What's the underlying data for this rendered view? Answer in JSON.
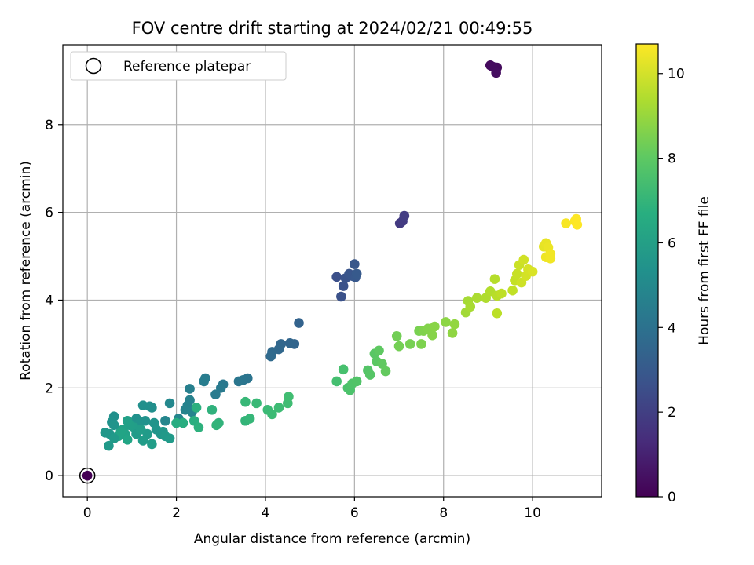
{
  "chart_data": {
    "type": "scatter",
    "title": "FOV centre drift starting at 2024/02/21 00:49:55",
    "xlabel": "Angular distance from reference (arcmin)",
    "ylabel": "Rotation from reference (arcmin)",
    "xlim": [
      -0.55,
      11.55
    ],
    "ylim": [
      -0.48,
      9.82
    ],
    "xticks": [
      0,
      2,
      4,
      6,
      8,
      10
    ],
    "yticks": [
      0,
      2,
      4,
      6,
      8
    ],
    "grid": true,
    "legend": {
      "placement": "upper-left",
      "entries": [
        "Reference platepar"
      ]
    },
    "reference_point": {
      "x": 0,
      "y": 0
    },
    "colorbar": {
      "label": "Hours from first FF file",
      "range": [
        0,
        10.7
      ],
      "ticks": [
        0,
        2,
        4,
        6,
        8,
        10
      ],
      "colormap": "viridis"
    },
    "points": [
      {
        "x": 0.0,
        "y": 0.0,
        "c": 0.0
      },
      {
        "x": 9.05,
        "y": 9.35,
        "c": 0.3
      },
      {
        "x": 9.2,
        "y": 9.3,
        "c": 0.3
      },
      {
        "x": 9.1,
        "y": 9.32,
        "c": 0.35
      },
      {
        "x": 9.18,
        "y": 9.18,
        "c": 0.4
      },
      {
        "x": 7.02,
        "y": 5.75,
        "c": 1.8
      },
      {
        "x": 7.08,
        "y": 5.8,
        "c": 1.85
      },
      {
        "x": 7.12,
        "y": 5.92,
        "c": 1.9
      },
      {
        "x": 5.6,
        "y": 4.53,
        "c": 2.6
      },
      {
        "x": 5.7,
        "y": 4.08,
        "c": 2.7
      },
      {
        "x": 5.75,
        "y": 4.32,
        "c": 2.7
      },
      {
        "x": 5.8,
        "y": 4.5,
        "c": 2.75
      },
      {
        "x": 5.88,
        "y": 4.6,
        "c": 2.8
      },
      {
        "x": 5.95,
        "y": 4.55,
        "c": 2.85
      },
      {
        "x": 6.0,
        "y": 4.82,
        "c": 2.9
      },
      {
        "x": 6.02,
        "y": 4.52,
        "c": 2.95
      },
      {
        "x": 6.05,
        "y": 4.6,
        "c": 3.0
      },
      {
        "x": 4.75,
        "y": 3.48,
        "c": 3.4
      },
      {
        "x": 4.65,
        "y": 3.0,
        "c": 3.45
      },
      {
        "x": 4.55,
        "y": 3.02,
        "c": 3.5
      },
      {
        "x": 4.35,
        "y": 3.0,
        "c": 3.55
      },
      {
        "x": 4.3,
        "y": 2.88,
        "c": 3.6
      },
      {
        "x": 4.15,
        "y": 2.82,
        "c": 3.65
      },
      {
        "x": 4.12,
        "y": 2.72,
        "c": 3.7
      },
      {
        "x": 3.6,
        "y": 2.22,
        "c": 4.1
      },
      {
        "x": 3.5,
        "y": 2.18,
        "c": 4.15
      },
      {
        "x": 3.4,
        "y": 2.15,
        "c": 4.2
      },
      {
        "x": 3.05,
        "y": 2.08,
        "c": 4.3
      },
      {
        "x": 3.0,
        "y": 2.0,
        "c": 4.35
      },
      {
        "x": 2.88,
        "y": 1.85,
        "c": 4.4
      },
      {
        "x": 2.65,
        "y": 2.22,
        "c": 4.45
      },
      {
        "x": 2.62,
        "y": 2.15,
        "c": 4.5
      },
      {
        "x": 2.3,
        "y": 1.98,
        "c": 4.6
      },
      {
        "x": 2.3,
        "y": 1.72,
        "c": 4.65
      },
      {
        "x": 2.25,
        "y": 1.6,
        "c": 4.7
      },
      {
        "x": 2.2,
        "y": 1.5,
        "c": 4.75
      },
      {
        "x": 2.35,
        "y": 1.45,
        "c": 4.8
      },
      {
        "x": 2.05,
        "y": 1.3,
        "c": 4.85
      },
      {
        "x": 1.75,
        "y": 1.25,
        "c": 4.9
      },
      {
        "x": 1.85,
        "y": 1.65,
        "c": 4.95
      },
      {
        "x": 1.4,
        "y": 1.58,
        "c": 5.2
      },
      {
        "x": 1.45,
        "y": 1.55,
        "c": 5.25
      },
      {
        "x": 1.25,
        "y": 1.6,
        "c": 5.3
      },
      {
        "x": 1.1,
        "y": 1.3,
        "c": 5.35
      },
      {
        "x": 1.3,
        "y": 1.25,
        "c": 5.4
      },
      {
        "x": 1.15,
        "y": 1.18,
        "c": 5.45
      },
      {
        "x": 1.5,
        "y": 1.2,
        "c": 5.5
      },
      {
        "x": 1.55,
        "y": 1.05,
        "c": 5.55
      },
      {
        "x": 1.65,
        "y": 0.95,
        "c": 5.6
      },
      {
        "x": 1.7,
        "y": 1.0,
        "c": 5.65
      },
      {
        "x": 1.75,
        "y": 0.9,
        "c": 5.7
      },
      {
        "x": 1.85,
        "y": 0.85,
        "c": 5.75
      },
      {
        "x": 1.35,
        "y": 0.95,
        "c": 5.8
      },
      {
        "x": 1.25,
        "y": 0.8,
        "c": 5.85
      },
      {
        "x": 1.45,
        "y": 0.72,
        "c": 5.9
      },
      {
        "x": 1.05,
        "y": 1.1,
        "c": 5.95
      },
      {
        "x": 0.95,
        "y": 1.15,
        "c": 6.0
      },
      {
        "x": 0.9,
        "y": 1.25,
        "c": 6.05
      },
      {
        "x": 0.8,
        "y": 1.05,
        "c": 6.1
      },
      {
        "x": 0.85,
        "y": 0.95,
        "c": 6.15
      },
      {
        "x": 0.7,
        "y": 0.9,
        "c": 6.2
      },
      {
        "x": 0.75,
        "y": 1.0,
        "c": 6.25
      },
      {
        "x": 0.9,
        "y": 0.82,
        "c": 6.3
      },
      {
        "x": 0.6,
        "y": 1.35,
        "c": 5.3
      },
      {
        "x": 0.55,
        "y": 1.22,
        "c": 5.4
      },
      {
        "x": 0.6,
        "y": 1.15,
        "c": 5.5
      },
      {
        "x": 0.5,
        "y": 0.95,
        "c": 5.6
      },
      {
        "x": 0.4,
        "y": 0.98,
        "c": 5.65
      },
      {
        "x": 0.48,
        "y": 0.68,
        "c": 5.7
      },
      {
        "x": 0.6,
        "y": 0.85,
        "c": 5.75
      },
      {
        "x": 1.1,
        "y": 0.95,
        "c": 5.8
      },
      {
        "x": 1.2,
        "y": 1.05,
        "c": 5.9
      },
      {
        "x": 2.0,
        "y": 1.2,
        "c": 6.6
      },
      {
        "x": 2.15,
        "y": 1.2,
        "c": 6.65
      },
      {
        "x": 2.4,
        "y": 1.25,
        "c": 6.7
      },
      {
        "x": 2.45,
        "y": 1.55,
        "c": 6.75
      },
      {
        "x": 2.5,
        "y": 1.1,
        "c": 6.8
      },
      {
        "x": 2.8,
        "y": 1.5,
        "c": 6.85
      },
      {
        "x": 2.95,
        "y": 1.2,
        "c": 6.9
      },
      {
        "x": 2.9,
        "y": 1.15,
        "c": 6.95
      },
      {
        "x": 3.55,
        "y": 1.25,
        "c": 7.0
      },
      {
        "x": 3.65,
        "y": 1.3,
        "c": 7.05
      },
      {
        "x": 3.55,
        "y": 1.68,
        "c": 7.1
      },
      {
        "x": 3.8,
        "y": 1.65,
        "c": 7.15
      },
      {
        "x": 4.05,
        "y": 1.5,
        "c": 7.2
      },
      {
        "x": 4.15,
        "y": 1.4,
        "c": 7.25
      },
      {
        "x": 4.3,
        "y": 1.55,
        "c": 7.3
      },
      {
        "x": 4.5,
        "y": 1.65,
        "c": 7.35
      },
      {
        "x": 4.52,
        "y": 1.8,
        "c": 7.4
      },
      {
        "x": 5.6,
        "y": 2.15,
        "c": 7.5
      },
      {
        "x": 5.75,
        "y": 2.42,
        "c": 7.55
      },
      {
        "x": 5.85,
        "y": 2.0,
        "c": 7.6
      },
      {
        "x": 5.9,
        "y": 1.95,
        "c": 7.65
      },
      {
        "x": 5.95,
        "y": 2.1,
        "c": 7.7
      },
      {
        "x": 6.05,
        "y": 2.15,
        "c": 7.75
      },
      {
        "x": 6.3,
        "y": 2.4,
        "c": 7.8
      },
      {
        "x": 6.35,
        "y": 2.3,
        "c": 7.85
      },
      {
        "x": 6.45,
        "y": 2.78,
        "c": 7.9
      },
      {
        "x": 6.5,
        "y": 2.6,
        "c": 7.95
      },
      {
        "x": 6.55,
        "y": 2.85,
        "c": 8.0
      },
      {
        "x": 6.62,
        "y": 2.55,
        "c": 8.05
      },
      {
        "x": 6.7,
        "y": 2.38,
        "c": 8.1
      },
      {
        "x": 6.95,
        "y": 3.18,
        "c": 8.4
      },
      {
        "x": 7.0,
        "y": 2.95,
        "c": 8.45
      },
      {
        "x": 7.25,
        "y": 3.0,
        "c": 8.5
      },
      {
        "x": 7.45,
        "y": 3.3,
        "c": 8.55
      },
      {
        "x": 7.5,
        "y": 3.0,
        "c": 8.6
      },
      {
        "x": 7.55,
        "y": 3.3,
        "c": 8.65
      },
      {
        "x": 7.65,
        "y": 3.35,
        "c": 8.7
      },
      {
        "x": 7.75,
        "y": 3.2,
        "c": 8.75
      },
      {
        "x": 7.8,
        "y": 3.4,
        "c": 8.8
      },
      {
        "x": 8.05,
        "y": 3.5,
        "c": 8.85
      },
      {
        "x": 8.2,
        "y": 3.25,
        "c": 8.9
      },
      {
        "x": 8.25,
        "y": 3.45,
        "c": 8.95
      },
      {
        "x": 8.5,
        "y": 3.72,
        "c": 9.2
      },
      {
        "x": 8.55,
        "y": 3.98,
        "c": 9.25
      },
      {
        "x": 8.6,
        "y": 3.85,
        "c": 9.3
      },
      {
        "x": 8.75,
        "y": 4.05,
        "c": 9.35
      },
      {
        "x": 8.95,
        "y": 4.05,
        "c": 9.4
      },
      {
        "x": 9.05,
        "y": 4.2,
        "c": 9.45
      },
      {
        "x": 9.15,
        "y": 4.48,
        "c": 9.5
      },
      {
        "x": 9.2,
        "y": 4.1,
        "c": 9.55
      },
      {
        "x": 9.2,
        "y": 3.7,
        "c": 9.6
      },
      {
        "x": 9.3,
        "y": 4.15,
        "c": 9.65
      },
      {
        "x": 9.55,
        "y": 4.22,
        "c": 9.7
      },
      {
        "x": 9.6,
        "y": 4.45,
        "c": 9.75
      },
      {
        "x": 9.65,
        "y": 4.6,
        "c": 9.8
      },
      {
        "x": 9.7,
        "y": 4.8,
        "c": 9.85
      },
      {
        "x": 9.75,
        "y": 4.4,
        "c": 9.9
      },
      {
        "x": 9.8,
        "y": 4.92,
        "c": 9.95
      },
      {
        "x": 9.85,
        "y": 4.55,
        "c": 10.0
      },
      {
        "x": 9.9,
        "y": 4.7,
        "c": 10.05
      },
      {
        "x": 10.0,
        "y": 4.65,
        "c": 10.1
      },
      {
        "x": 10.25,
        "y": 5.22,
        "c": 10.3
      },
      {
        "x": 10.3,
        "y": 5.3,
        "c": 10.35
      },
      {
        "x": 10.35,
        "y": 5.2,
        "c": 10.4
      },
      {
        "x": 10.3,
        "y": 4.98,
        "c": 10.45
      },
      {
        "x": 10.4,
        "y": 5.05,
        "c": 10.5
      },
      {
        "x": 10.4,
        "y": 4.95,
        "c": 10.5
      },
      {
        "x": 10.75,
        "y": 5.75,
        "c": 10.6
      },
      {
        "x": 10.95,
        "y": 5.8,
        "c": 10.65
      },
      {
        "x": 11.0,
        "y": 5.72,
        "c": 10.7
      },
      {
        "x": 10.98,
        "y": 5.85,
        "c": 10.7
      }
    ]
  }
}
